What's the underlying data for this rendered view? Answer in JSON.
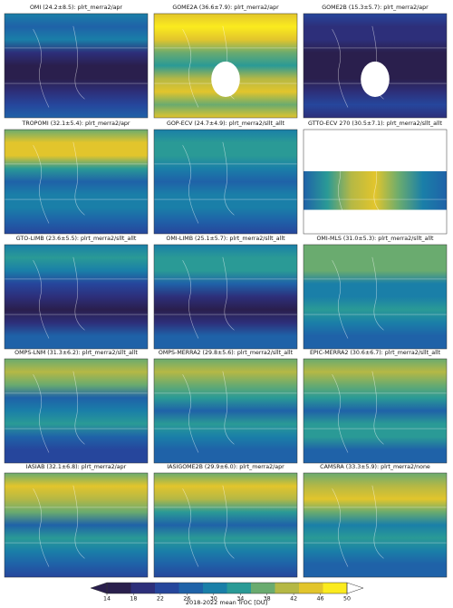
{
  "panels": [
    {
      "title": "OMI (24.2±8.5): plrt_merra2/apr"
    },
    {
      "title": "GOME2A (36.6±7.9): plrt_merra2/apr"
    },
    {
      "title": "GOME2B (15.3±5.7): plrt_merra2/apr"
    },
    {
      "title": "TROPOMI (32.1±5.4): plrt_merra2/apr"
    },
    {
      "title": "GOP-ECV (24.7±4.9): plrt_merra2/sllt_allt"
    },
    {
      "title": "GTTO-ECV 270 (30.5±7.1): plrt_merra2/sllt_allt"
    },
    {
      "title": "GTO-LIMB (23.6±5.5): plrt_merra2/sllt_allt"
    },
    {
      "title": "OMI-LIMB (25.1±5.7): plrt_merra2/sllt_allt"
    },
    {
      "title": "OMI-MLS (31.0±5.3): plrt_merra2/sllt_allt"
    },
    {
      "title": "OMPS-LNM (31.3±6.2): plrt_merra2/sllt_allt"
    },
    {
      "title": "OMPS-MERRA2 (29.8±5.6): plrt_merra2/sllt_allt"
    },
    {
      "title": "EPIC-MERRA2 (30.6±6.7): plrt_merra2/sllt_allt"
    },
    {
      "title": "IASIAB (32.1±6.8): plrt_merra2/apr"
    },
    {
      "title": "IASIGOME2B (29.9±6.0): plrt_merra2/apr"
    },
    {
      "title": "CAMSRA (33.3±5.9): plrt_merra2/none"
    }
  ],
  "colorbar": {
    "label": "2018-2022 mean TrOC [DU]",
    "lim": [
      14,
      50
    ],
    "ticks": [
      14,
      18,
      22,
      26,
      30,
      34,
      38,
      42,
      46,
      50
    ],
    "colors": [
      "#2a1f4d",
      "#2d2f7a",
      "#26469c",
      "#1f62a8",
      "#1a7fa8",
      "#2a9a96",
      "#6aab6f",
      "#b5b845",
      "#e2c52c",
      "#fbeb1e"
    ]
  }
}
